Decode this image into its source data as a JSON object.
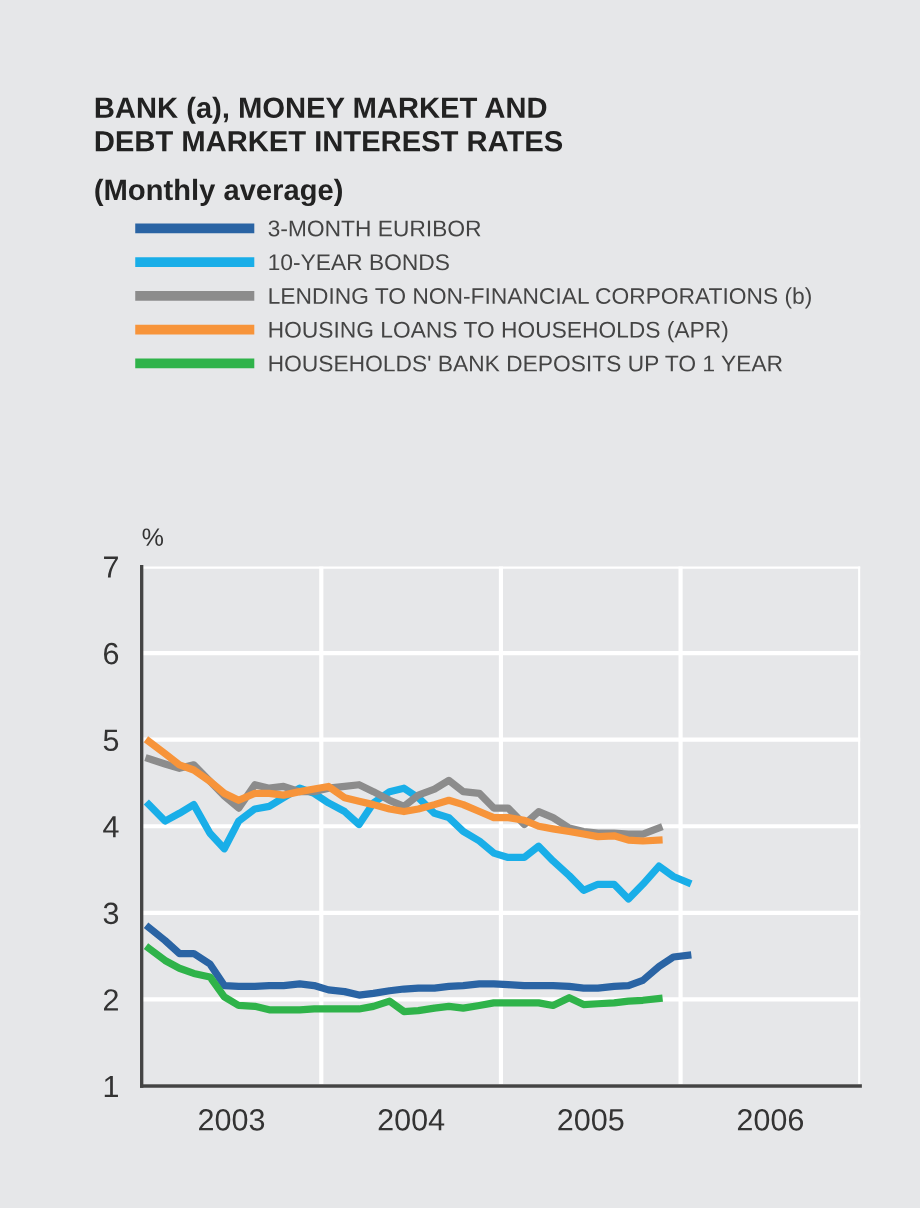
{
  "chart_data": {
    "type": "line",
    "title": "BANK (a), MONEY MARKET AND\nDEBT MARKET INTEREST RATES",
    "subtitle": "(Monthly average)",
    "ylabel": "%",
    "x": [
      2003.04,
      2003.13,
      2003.21,
      2003.29,
      2003.38,
      2003.46,
      2003.54,
      2003.63,
      2003.71,
      2003.79,
      2003.88,
      2003.96,
      2004.04,
      2004.13,
      2004.21,
      2004.29,
      2004.38,
      2004.46,
      2004.54,
      2004.63,
      2004.71,
      2004.79,
      2004.88,
      2004.96,
      2005.04,
      2005.13,
      2005.21,
      2005.29,
      2005.38,
      2005.46,
      2005.54,
      2005.63,
      2005.71,
      2005.79,
      2005.88,
      2005.96,
      2006.04
    ],
    "series": [
      {
        "name": "3-MONTH EURIBOR",
        "color": "#2a64a4",
        "values": [
          2.83,
          2.68,
          2.53,
          2.53,
          2.41,
          2.16,
          2.15,
          2.15,
          2.16,
          2.16,
          2.18,
          2.16,
          2.11,
          2.09,
          2.05,
          2.07,
          2.1,
          2.12,
          2.13,
          2.13,
          2.15,
          2.16,
          2.18,
          2.18,
          2.17,
          2.16,
          2.16,
          2.16,
          2.15,
          2.13,
          2.13,
          2.15,
          2.16,
          2.22,
          2.38,
          2.49,
          2.51
        ]
      },
      {
        "name": "10-YEAR BONDS",
        "color": "#19aee8",
        "values": [
          4.25,
          4.06,
          4.15,
          4.25,
          3.92,
          3.74,
          4.06,
          4.2,
          4.23,
          4.33,
          4.44,
          4.38,
          4.27,
          4.17,
          4.02,
          4.27,
          4.4,
          4.44,
          4.33,
          4.15,
          4.1,
          3.94,
          3.83,
          3.69,
          3.64,
          3.64,
          3.77,
          3.6,
          3.43,
          3.26,
          3.33,
          3.33,
          3.16,
          3.33,
          3.54,
          3.42,
          3.35
        ]
      },
      {
        "name": "LENDING TO NON-FINANCIAL CORPORATIONS (b)",
        "color": "#8c8c8c",
        "values": [
          4.78,
          4.72,
          4.67,
          4.71,
          4.52,
          4.35,
          4.21,
          4.48,
          4.44,
          4.46,
          4.4,
          4.4,
          4.44,
          4.46,
          4.48,
          4.4,
          4.3,
          4.23,
          4.36,
          4.43,
          4.53,
          4.4,
          4.38,
          4.21,
          4.21,
          4.02,
          4.17,
          4.1,
          3.98,
          3.94,
          3.92,
          3.92,
          3.91,
          3.91,
          3.98,
          null,
          null
        ]
      },
      {
        "name": "HOUSING LOANS TO HOUSEHOLDS (APR)",
        "color": "#f7943a",
        "values": [
          4.98,
          4.84,
          4.71,
          4.65,
          4.52,
          4.38,
          4.3,
          4.38,
          4.38,
          4.36,
          4.4,
          4.43,
          4.46,
          4.33,
          4.29,
          4.25,
          4.2,
          4.17,
          4.2,
          4.25,
          4.3,
          4.25,
          4.17,
          4.1,
          4.1,
          4.07,
          4.0,
          3.97,
          3.94,
          3.91,
          3.88,
          3.89,
          3.84,
          3.83,
          3.84,
          null,
          null
        ]
      },
      {
        "name": "HOUSEHOLDS' BANK DEPOSITS UP TO 1 YEAR",
        "color": "#2fb34a",
        "values": [
          2.59,
          2.45,
          2.36,
          2.3,
          2.26,
          2.03,
          1.93,
          1.92,
          1.88,
          1.88,
          1.88,
          1.89,
          1.89,
          1.89,
          1.89,
          1.92,
          1.98,
          1.86,
          1.87,
          1.9,
          1.92,
          1.9,
          1.93,
          1.96,
          1.96,
          1.96,
          1.96,
          1.93,
          2.02,
          1.94,
          1.95,
          1.96,
          1.98,
          1.99,
          2.01,
          null,
          null
        ]
      }
    ],
    "xlim": [
      2003,
      2007
    ],
    "xticks": [
      {
        "value": 2003.5,
        "label": "2003"
      },
      {
        "value": 2004,
        "label": null
      },
      {
        "value": 2004.5,
        "label": "2004"
      },
      {
        "value": 2005,
        "label": null
      },
      {
        "value": 2005.5,
        "label": "2005"
      },
      {
        "value": 2006,
        "label": null
      },
      {
        "value": 2006.5,
        "label": "2006"
      },
      {
        "value": 2007,
        "label": null
      }
    ],
    "ylim": [
      1,
      7
    ],
    "yticks": [
      1,
      2,
      3,
      4,
      5,
      6,
      7
    ],
    "grid": true,
    "legend": "top",
    "marker": "none",
    "line_style": "solid"
  }
}
